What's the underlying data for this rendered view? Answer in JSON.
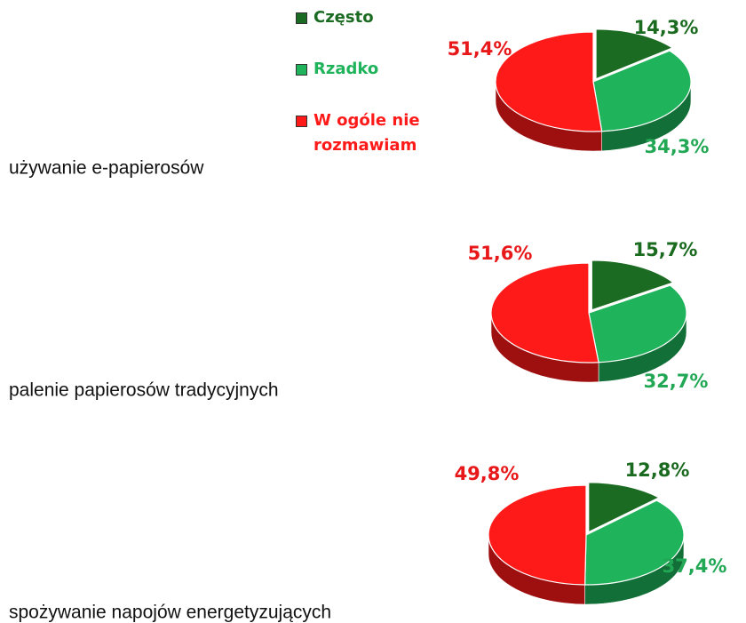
{
  "legend": {
    "items": [
      {
        "name": "Często",
        "color": "#1c6b22"
      },
      {
        "name": "Rzadko",
        "color": "#1fb35b"
      },
      {
        "name": "W ogóle nie rozmawiam",
        "color": "#ff1a1a"
      }
    ]
  },
  "chart_data": [
    {
      "type": "pie",
      "title": "używanie e-papierosów",
      "values": [
        14.3,
        34.3,
        51.4
      ],
      "value_labels": [
        "14,3%",
        "34,3%",
        "51,4%"
      ]
    },
    {
      "type": "pie",
      "title": "palenie papierosów tradycyjnych",
      "values": [
        15.7,
        32.7,
        51.6
      ],
      "value_labels": [
        "15,7%",
        "32,7%",
        "51,6%"
      ]
    },
    {
      "type": "pie",
      "title": "spożywanie napojów energetyzujących",
      "values": [
        12.8,
        37.4,
        49.8
      ],
      "value_labels": [
        "12,8%",
        "37,4%",
        "49,8%"
      ]
    }
  ]
}
